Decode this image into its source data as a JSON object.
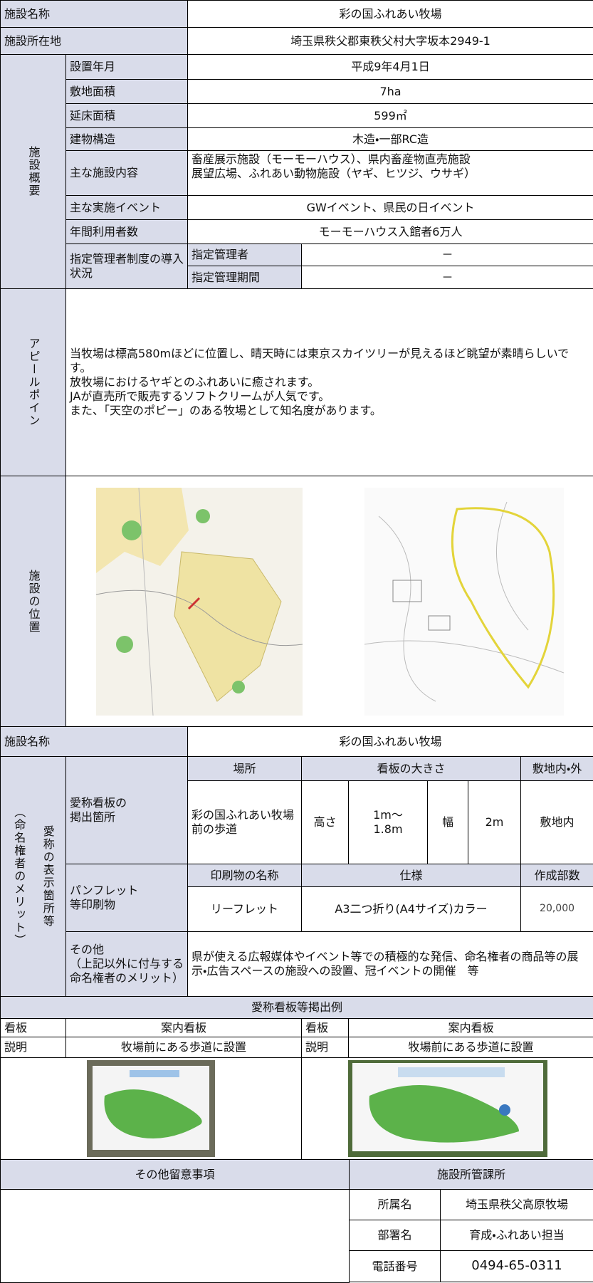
{
  "facility": {
    "name_label": "施設名称",
    "name": "彩の国ふれあい牧場",
    "address_label": "施設所在地",
    "address": "埼玉県秩父郡東秩父村大字坂本2949-1"
  },
  "overview": {
    "label": "施設概要",
    "rows": [
      {
        "label": "設置年月",
        "value": "平成9年4月1日"
      },
      {
        "label": "敷地面積",
        "value": "7ha"
      },
      {
        "label": "延床面積",
        "value": "599㎡"
      },
      {
        "label": "建物構造",
        "value": "木造・一部RC造"
      }
    ],
    "content": {
      "label": "主な施設内容",
      "lines": [
        "畜産展示施設（モーモーハウス）、県内畜産物直売施設",
        "展望広場、ふれあい動物施設（ヤギ、ヒツジ、ウサギ）"
      ]
    },
    "rows2": [
      {
        "label": "主な実施イベント",
        "value": "GWイベント、県民の日イベント"
      },
      {
        "label": "年間利用者数",
        "value": "モーモーハウス入館者6万人"
      }
    ],
    "manager": {
      "label": "指定管理者制度の導入状況",
      "items": [
        {
          "label": "指定管理者",
          "value": "－"
        },
        {
          "label": "指定管理期間",
          "value": "－"
        }
      ]
    }
  },
  "appeal": {
    "label": "アピールポイン",
    "lines": [
      "当牧場は標高580mほどに位置し、晴天時には東京スカイツリーが見えるほど眺望が素晴らしいです。",
      "放牧場におけるヤギとのふれあいに癒されます。",
      "JAが直売所で販売するソフトクリームが人気です。",
      "また、「天空のポピー」のある牧場として知名度があります。"
    ]
  },
  "location": {
    "label": "施設の位置"
  },
  "naming": {
    "facility_label": "施設名称",
    "facility_name": "彩の国ふれあい牧場",
    "label_lines": [
      "愛称の表示箇所等",
      "（命名権者のメリット）"
    ],
    "sign": {
      "label_lines": [
        "愛称看板の",
        "掲出箇所"
      ],
      "headers": [
        "場所",
        "看板の大きさ",
        "敷地内・外"
      ],
      "place": "彩の国ふれあい牧場前の歩道",
      "height_label": "高さ",
      "height_lines": [
        "1m～",
        "1.8m"
      ],
      "width_label": "幅",
      "width": "2m",
      "site": "敷地内"
    },
    "print": {
      "label_lines": [
        "パンフレット",
        "等印刷物"
      ],
      "headers": [
        "印刷物の名称",
        "仕様",
        "作成部数"
      ],
      "name": "リーフレット",
      "spec": "A3二つ折り(A4サイズ)カラー",
      "copies": "20,000"
    },
    "other": {
      "label_lines": [
        "その他",
        "（上記以外に付与する命名権者のメリット）"
      ],
      "text": "県が使える広報媒体やイベント等での積極的な発信、命名権者の商品等の展示・広告スペースの施設への設置、冠イベントの開催　等"
    }
  },
  "examples": {
    "title": "愛称看板等掲出例",
    "items": [
      {
        "sign_label": "看板",
        "sign": "案内看板",
        "desc_label": "説明",
        "desc": "牧場前にある歩道に設置"
      },
      {
        "sign_label": "看板",
        "sign": "案内看板",
        "desc_label": "説明",
        "desc": "牧場前にある歩道に設置"
      }
    ]
  },
  "contact": {
    "notes_label": "その他留意事項",
    "office_label": "施設所管課所",
    "rows": [
      {
        "label": "所属名",
        "value": "埼玉県秩父高原牧場"
      },
      {
        "label": "部署名",
        "value": "育成・ふれあい担当"
      },
      {
        "label": "電話番号",
        "value": "0494-65-0311"
      }
    ]
  }
}
